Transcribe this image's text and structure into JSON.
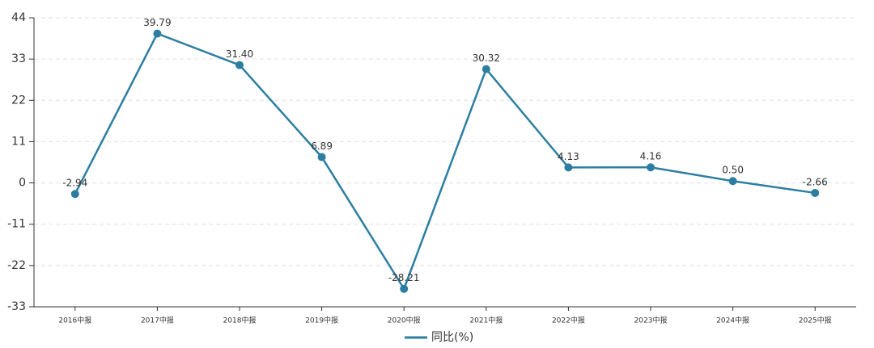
{
  "chart_data": {
    "type": "line",
    "categories": [
      "2016中报",
      "2017中报",
      "2018中报",
      "2019中报",
      "2020中报",
      "2021中报",
      "2022中报",
      "2023中报",
      "2024中报",
      "2025中报"
    ],
    "series": [
      {
        "name": "同比(%)",
        "color": "#2c7ea1",
        "values": [
          -2.94,
          39.79,
          31.4,
          6.89,
          -28.21,
          30.32,
          4.13,
          4.16,
          0.5,
          -2.66
        ],
        "value_labels": [
          "-2.94",
          "39.79",
          "31.40",
          "6.89",
          "-28.21",
          "30.32",
          "4.13",
          "4.16",
          "0.50",
          "-2.66"
        ]
      }
    ],
    "ylim": [
      -33,
      44
    ],
    "yticks": [
      -33,
      -22,
      -11,
      0,
      11,
      22,
      33,
      44
    ],
    "grid": true,
    "legend": "bottom"
  }
}
